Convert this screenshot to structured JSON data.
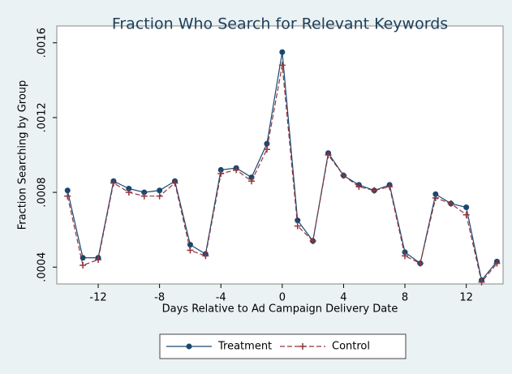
{
  "chart_data": {
    "type": "line",
    "title": "Fraction Who Search for Relevant Keywords",
    "x_label": "Days Relative to Ad Campaign Delivery Date",
    "y_label": "Fraction Searching by Group",
    "x": [
      -14,
      -13,
      -12,
      -11,
      -10,
      -9,
      -8,
      -7,
      -6,
      -5,
      -4,
      -3,
      -2,
      -1,
      0,
      1,
      2,
      3,
      4,
      5,
      6,
      7,
      8,
      9,
      10,
      11,
      12,
      13,
      14
    ],
    "series": [
      {
        "name": "Treatment",
        "color": "#1a476f",
        "marker": "circle",
        "dash": false,
        "values": [
          0.00081,
          0.00045,
          0.00045,
          0.00086,
          0.00082,
          0.0008,
          0.00081,
          0.00086,
          0.00052,
          0.00047,
          0.00092,
          0.00093,
          0.00088,
          0.00106,
          0.00155,
          0.00065,
          0.00054,
          0.00101,
          0.00089,
          0.00084,
          0.00081,
          0.00084,
          0.00048,
          0.00042,
          0.00079,
          0.00074,
          0.00072,
          0.00033,
          0.00043
        ]
      },
      {
        "name": "Control",
        "color": "#90353b",
        "marker": "plus",
        "dash": true,
        "values": [
          0.00078,
          0.00041,
          0.00044,
          0.00085,
          0.0008,
          0.00078,
          0.00078,
          0.00085,
          0.00049,
          0.00046,
          0.0009,
          0.00092,
          0.00086,
          0.00103,
          0.00148,
          0.00062,
          0.00054,
          0.001,
          0.00089,
          0.00083,
          0.00081,
          0.00083,
          0.00046,
          0.00042,
          0.00077,
          0.00074,
          0.00068,
          0.00032,
          0.00042
        ]
      }
    ],
    "xlim": [
      -14.7,
      14.4
    ],
    "ylim": [
      0.00031,
      0.00169
    ],
    "xticks": [
      -12,
      -8,
      -4,
      0,
      4,
      8,
      12
    ],
    "yticks": [
      {
        "value": 0.0004,
        "label": ".0004"
      },
      {
        "value": 0.0008,
        "label": ".0008"
      },
      {
        "value": 0.0012,
        "label": ".0012"
      },
      {
        "value": 0.0016,
        "label": ".0016"
      }
    ],
    "legend_position": "bottom"
  }
}
